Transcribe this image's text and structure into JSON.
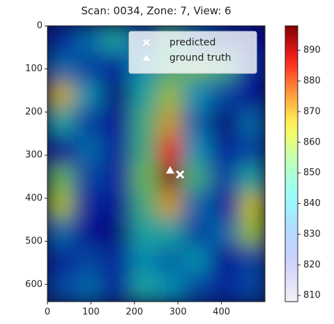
{
  "chart_data": {
    "type": "heatmap",
    "title": "Scan: 0034, Zone: 7, View: 6",
    "colormap": "jet",
    "xbins": [
      0,
      62.5,
      125,
      187.5,
      250,
      312.5,
      375,
      437.5,
      500
    ],
    "ybins": [
      0,
      64,
      128,
      192,
      256,
      320,
      384,
      448,
      512,
      576,
      640
    ],
    "z": [
      [
        825,
        835,
        845,
        830,
        850,
        835,
        825,
        820
      ],
      [
        835,
        830,
        825,
        840,
        850,
        855,
        850,
        825
      ],
      [
        868,
        840,
        815,
        845,
        860,
        840,
        830,
        820
      ],
      [
        845,
        830,
        820,
        850,
        870,
        835,
        815,
        835
      ],
      [
        820,
        835,
        825,
        850,
        885,
        840,
        825,
        830
      ],
      [
        855,
        830,
        825,
        855,
        897,
        850,
        830,
        845
      ],
      [
        862,
        825,
        820,
        850,
        870,
        835,
        825,
        865
      ],
      [
        835,
        820,
        815,
        845,
        845,
        830,
        835,
        860
      ],
      [
        825,
        830,
        825,
        840,
        835,
        840,
        820,
        830
      ],
      [
        830,
        835,
        825,
        845,
        840,
        830,
        825,
        830
      ]
    ],
    "xlim": [
      0,
      500
    ],
    "ylim": [
      640,
      0
    ],
    "xticks": [
      0,
      100,
      200,
      300,
      400
    ],
    "yticks": [
      0,
      100,
      200,
      300,
      400,
      500,
      600
    ],
    "clim": [
      808,
      898
    ],
    "cticks": [
      810,
      820,
      830,
      840,
      850,
      860,
      870,
      880,
      890
    ],
    "series": [
      {
        "name": "predicted",
        "marker": "X",
        "color": "#ffffff",
        "x": [
          305
        ],
        "y": [
          345
        ]
      },
      {
        "name": "ground truth",
        "marker": "^",
        "color": "#ffffff",
        "x": [
          282
        ],
        "y": [
          335
        ]
      }
    ],
    "legend": "upper right"
  }
}
